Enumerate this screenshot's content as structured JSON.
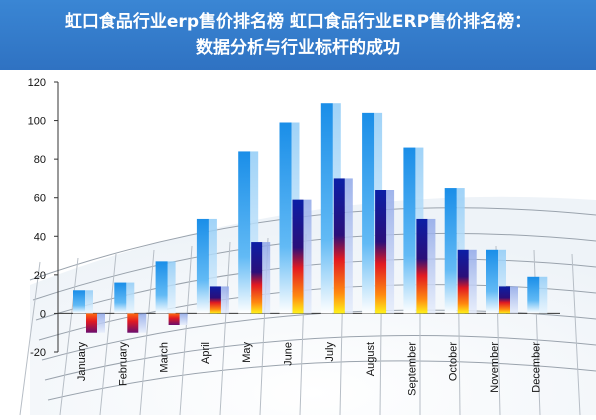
{
  "page": {
    "title": "虹口食品行业erp售价排名榜 虹口食品行业ERP售价排名榜：数据分析与行业标杆的成功"
  },
  "chart_data": {
    "type": "bar",
    "title": "",
    "xlabel": "",
    "ylabel": "",
    "ylim": [
      -20,
      120
    ],
    "yticks": [
      -20,
      0,
      20,
      40,
      60,
      80,
      100,
      120
    ],
    "grid": false,
    "categories": [
      "January",
      "February",
      "March",
      "April",
      "May",
      "June",
      "July",
      "August",
      "September",
      "October",
      "November",
      "December"
    ],
    "series": [
      {
        "values": [
          12,
          16,
          27,
          49,
          84,
          99,
          109,
          104,
          86,
          65,
          33,
          19
        ]
      },
      {
        "values": [
          -10,
          -10,
          -6,
          14,
          37,
          59,
          70,
          64,
          49,
          33,
          14,
          null
        ]
      }
    ],
    "colors": {
      "series1": "#1f8fe6",
      "series2_top": "#0a1f99",
      "series2_mid": "#e11b22",
      "series2_bottom": "#ffee10",
      "banner": "#3280cb"
    }
  }
}
